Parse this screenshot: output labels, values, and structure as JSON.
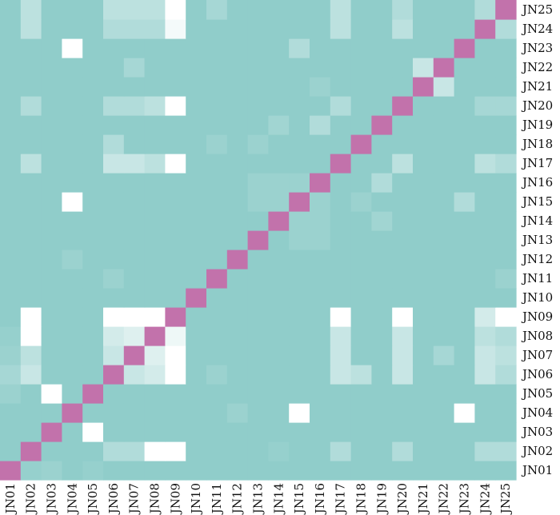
{
  "chart_data": {
    "type": "heatmap",
    "title": "",
    "xlabel": "",
    "ylabel": "",
    "x_categories": [
      "JN01",
      "JN02",
      "JN03",
      "JN04",
      "JN05",
      "JN06",
      "JN07",
      "JN08",
      "JN09",
      "JN10",
      "JN11",
      "JN12",
      "JN13",
      "JN14",
      "JN15",
      "JN16",
      "JN17",
      "JN18",
      "JN19",
      "JN20",
      "JN21",
      "JN22",
      "JN23",
      "JN24",
      "JN25"
    ],
    "y_categories": [
      "JN01",
      "JN02",
      "JN03",
      "JN04",
      "JN05",
      "JN06",
      "JN07",
      "JN08",
      "JN09",
      "JN10",
      "JN11",
      "JN12",
      "JN13",
      "JN14",
      "JN15",
      "JN16",
      "JN17",
      "JN18",
      "JN19",
      "JN20",
      "JN21",
      "JN22",
      "JN23",
      "JN24",
      "JN25"
    ],
    "y_order": "JN01 at bottom, JN25 at top",
    "colors": {
      "low": "#90cdca",
      "high": "#ffffff",
      "diagonal": "#c272ab"
    },
    "value_range": [
      0,
      1
    ],
    "diagonal_value": 1,
    "matrix": [
      [
        1,
        0.05,
        0.1,
        0,
        0.05,
        0,
        0,
        0,
        0,
        0,
        0,
        0,
        0,
        0,
        0,
        0,
        0,
        0,
        0,
        0,
        0,
        0,
        0,
        0,
        0
      ],
      [
        0,
        1,
        0,
        0,
        0,
        0.3,
        0.3,
        1,
        1,
        0,
        0,
        0,
        0,
        0.05,
        0,
        0,
        0.3,
        0,
        0,
        0.3,
        0,
        0,
        0,
        0.3,
        0.3
      ],
      [
        0,
        0,
        1,
        0,
        1,
        0,
        0,
        0,
        0,
        0,
        0,
        0,
        0,
        0,
        0,
        0,
        0,
        0,
        0,
        0,
        0,
        0,
        0,
        0,
        0
      ],
      [
        0,
        0,
        0,
        1,
        0,
        0,
        0,
        0,
        0,
        0,
        0,
        0.1,
        0,
        0,
        1,
        0,
        0,
        0,
        0,
        0,
        0,
        0,
        1,
        0,
        0
      ],
      [
        0.1,
        0,
        1,
        0,
        1,
        0,
        0,
        0,
        0,
        0,
        0,
        0,
        0,
        0,
        0,
        0,
        0,
        0,
        0,
        0,
        0,
        0,
        0,
        0,
        0
      ],
      [
        0.2,
        0.5,
        0,
        0,
        0,
        1,
        0.5,
        0.6,
        1,
        0,
        0.1,
        0,
        0,
        0,
        0,
        0,
        0.5,
        0.4,
        0,
        0.5,
        0,
        0,
        0,
        0.5,
        0.3
      ],
      [
        0.1,
        0.4,
        0,
        0,
        0,
        0.5,
        1,
        0.7,
        1,
        0,
        0,
        0,
        0,
        0,
        0,
        0,
        0.5,
        0,
        0,
        0.5,
        0,
        0.2,
        0,
        0.5,
        0.4
      ],
      [
        0.05,
        1,
        0,
        0,
        0,
        0.6,
        0.7,
        1,
        0.85,
        0,
        0,
        0,
        0,
        0,
        0,
        0,
        0.5,
        0,
        0,
        0.5,
        0,
        0,
        0,
        0.4,
        0.3
      ],
      [
        0,
        1,
        0,
        0,
        0,
        1,
        1,
        1,
        1,
        0,
        0,
        0,
        0,
        0,
        0,
        0,
        1,
        0,
        0,
        1,
        0,
        0,
        0,
        0.6,
        1
      ],
      [
        0,
        0,
        0,
        0,
        0,
        0,
        0,
        0,
        0,
        1,
        0,
        0,
        0,
        0,
        0,
        0,
        0,
        0,
        0,
        0,
        0,
        0,
        0,
        0,
        0
      ],
      [
        0,
        0,
        0,
        0,
        0,
        0.1,
        0,
        0,
        0,
        0,
        1,
        0,
        0,
        0,
        0,
        0,
        0,
        0,
        0,
        0,
        0,
        0,
        0,
        0,
        0.1
      ],
      [
        0,
        0,
        0,
        0.1,
        0,
        0,
        0,
        0,
        0,
        0,
        0,
        1,
        0,
        0,
        0,
        0,
        0,
        0,
        0,
        0,
        0,
        0,
        0,
        0,
        0
      ],
      [
        0,
        0,
        0,
        0,
        0,
        0,
        0,
        0,
        0,
        0,
        0,
        0,
        1,
        0,
        0.1,
        0.1,
        0,
        0,
        0,
        0,
        0,
        0,
        0,
        0,
        0
      ],
      [
        0,
        0,
        0,
        0,
        0,
        0,
        0,
        0,
        0,
        0,
        0,
        0,
        0,
        1,
        0.1,
        0.1,
        0,
        0,
        0.15,
        0,
        0,
        0,
        0,
        0,
        0
      ],
      [
        0,
        0,
        0,
        1,
        0,
        0,
        0,
        0,
        0,
        0,
        0,
        0,
        0.1,
        0.1,
        1,
        0.1,
        0,
        0.1,
        0,
        0,
        0,
        0,
        0.3,
        0,
        0
      ],
      [
        0,
        0,
        0,
        0,
        0,
        0,
        0,
        0,
        0,
        0,
        0,
        0,
        0.1,
        0.1,
        0.1,
        1,
        0,
        0,
        0.3,
        0,
        0,
        0,
        0,
        0,
        0
      ],
      [
        0,
        0.4,
        0,
        0,
        0,
        0.5,
        0.5,
        0.4,
        1,
        0,
        0,
        0,
        0,
        0,
        0,
        0,
        1,
        0,
        0,
        0.4,
        0,
        0,
        0,
        0.4,
        0.3
      ],
      [
        0,
        0,
        0,
        0,
        0,
        0.3,
        0,
        0,
        0,
        0,
        0.1,
        0,
        0.1,
        0,
        0,
        0,
        0,
        1,
        0,
        0,
        0,
        0,
        0,
        0,
        0
      ],
      [
        0,
        0,
        0,
        0,
        0,
        0,
        0,
        0,
        0,
        0,
        0,
        0,
        0,
        0.15,
        0,
        0.3,
        0,
        0,
        1,
        0,
        0,
        0,
        0,
        0,
        0
      ],
      [
        0,
        0.3,
        0,
        0,
        0,
        0.3,
        0.3,
        0.4,
        1,
        0,
        0,
        0,
        0,
        0,
        0,
        0,
        0.3,
        0,
        0,
        1,
        0,
        0,
        0,
        0.2,
        0.2
      ],
      [
        0,
        0,
        0,
        0,
        0,
        0,
        0,
        0,
        0,
        0,
        0,
        0,
        0,
        0,
        0,
        0.1,
        0,
        0,
        0,
        0,
        1,
        0.5,
        0,
        0,
        0
      ],
      [
        0,
        0,
        0,
        0,
        0,
        0,
        0.2,
        0,
        0,
        0,
        0,
        0,
        0,
        0,
        0,
        0,
        0,
        0,
        0,
        0,
        0.5,
        1,
        0,
        0,
        0
      ],
      [
        0,
        0,
        0,
        1,
        0,
        0,
        0,
        0,
        0,
        0,
        0,
        0,
        0,
        0,
        0.3,
        0,
        0,
        0,
        0,
        0,
        0,
        0,
        1,
        0,
        0
      ],
      [
        0,
        0.4,
        0,
        0,
        0,
        0.3,
        0.3,
        0.3,
        0.9,
        0,
        0,
        0,
        0,
        0,
        0,
        0,
        0.4,
        0,
        0,
        0.4,
        0,
        0,
        0,
        1,
        0.3
      ],
      [
        0,
        0.4,
        0,
        0,
        0,
        0.4,
        0.4,
        0.4,
        1,
        0,
        0.2,
        0,
        0,
        0,
        0,
        0,
        0.4,
        0,
        0,
        0.3,
        0,
        0,
        0,
        0.3,
        1
      ]
    ]
  }
}
